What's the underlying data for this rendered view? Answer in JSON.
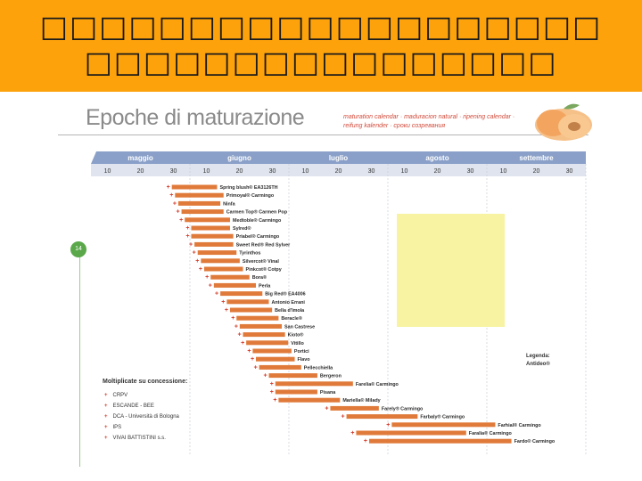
{
  "header": {
    "line1": "□□□□□□□□□□□□□□□□□□□",
    "line2": "□□□□□□□□□□□□□□□□"
  },
  "title": "Epoche di maturazione",
  "subtitle": "maturation calendar · maduracion natural · ripening calendar · reifung kalender · сроки созревания",
  "page_number": "14",
  "colors": {
    "banner": "#fda20a",
    "bar": "#e07a3a",
    "marker": "#d23a2a",
    "month_band": "#8aa0c8",
    "highlight": "#f7f3a3"
  },
  "growers": {
    "title": "Moltiplicate su concessione:",
    "items": [
      "CRPV",
      "ESCANDE - BEE",
      "DCA - Università di Bologna",
      "IPS",
      "VIVAI BATTISTINI s.s."
    ]
  },
  "legend": {
    "label": "Legenda:",
    "value": "Antideo®"
  },
  "chart_data": {
    "type": "bar",
    "title": "Epoche di maturazione",
    "months": [
      "maggio",
      "giugno",
      "luglio",
      "agosto",
      "settembre"
    ],
    "day_ticks": [
      "10",
      "20",
      "30"
    ],
    "x_unit": "day of season (maggio 1 = 0)",
    "xlim": [
      0,
      153
    ],
    "varieties": [
      {
        "name": "Spring blush® EA3126TH",
        "start": 25,
        "end": 39
      },
      {
        "name": "Primoyal® Carmingo",
        "start": 26,
        "end": 41
      },
      {
        "name": "Ninfa",
        "start": 27,
        "end": 40
      },
      {
        "name": "Carmen Top® Carmen Pop",
        "start": 28,
        "end": 41
      },
      {
        "name": "Medtoble® Carmingo",
        "start": 29,
        "end": 43
      },
      {
        "name": "Sylred®",
        "start": 31,
        "end": 43
      },
      {
        "name": "Priabel® Carmingo",
        "start": 31,
        "end": 44
      },
      {
        "name": "Sweet Red® Red Sylver",
        "start": 32,
        "end": 44
      },
      {
        "name": "Tyrinthos",
        "start": 33,
        "end": 45
      },
      {
        "name": "Silvercot® Vinal",
        "start": 34,
        "end": 46
      },
      {
        "name": "Pinkcot® Cotpy",
        "start": 35,
        "end": 47
      },
      {
        "name": "Bora®",
        "start": 37,
        "end": 49
      },
      {
        "name": "Perla",
        "start": 38,
        "end": 51
      },
      {
        "name": "Big Red® EA4006",
        "start": 40,
        "end": 53
      },
      {
        "name": "Antonio Errani",
        "start": 42,
        "end": 55
      },
      {
        "name": "Bella d'Imola",
        "start": 43,
        "end": 56
      },
      {
        "name": "Beracle®",
        "start": 45,
        "end": 58
      },
      {
        "name": "San Castrese",
        "start": 46,
        "end": 59
      },
      {
        "name": "Kioto®",
        "start": 47,
        "end": 60
      },
      {
        "name": "Vitillo",
        "start": 48,
        "end": 61
      },
      {
        "name": "Portici",
        "start": 50,
        "end": 62
      },
      {
        "name": "Flavo",
        "start": 51,
        "end": 63
      },
      {
        "name": "Pellecchiella",
        "start": 52,
        "end": 65
      },
      {
        "name": "Bergeron",
        "start": 55,
        "end": 70
      },
      {
        "name": "Farelia® Carmingo",
        "start": 57,
        "end": 81
      },
      {
        "name": "Pisana",
        "start": 57,
        "end": 70
      },
      {
        "name": "Mariella® Milady",
        "start": 58,
        "end": 77
      },
      {
        "name": "Farely® Carmingo",
        "start": 74,
        "end": 89
      },
      {
        "name": "Farbaly® Carmingo",
        "start": 79,
        "end": 101
      },
      {
        "name": "Farhial® Carmingo",
        "start": 93,
        "end": 125
      },
      {
        "name": "Faralia® Carmingo",
        "start": 82,
        "end": 116
      },
      {
        "name": "Fardo® Carmingo",
        "start": 86,
        "end": 130
      }
    ]
  }
}
